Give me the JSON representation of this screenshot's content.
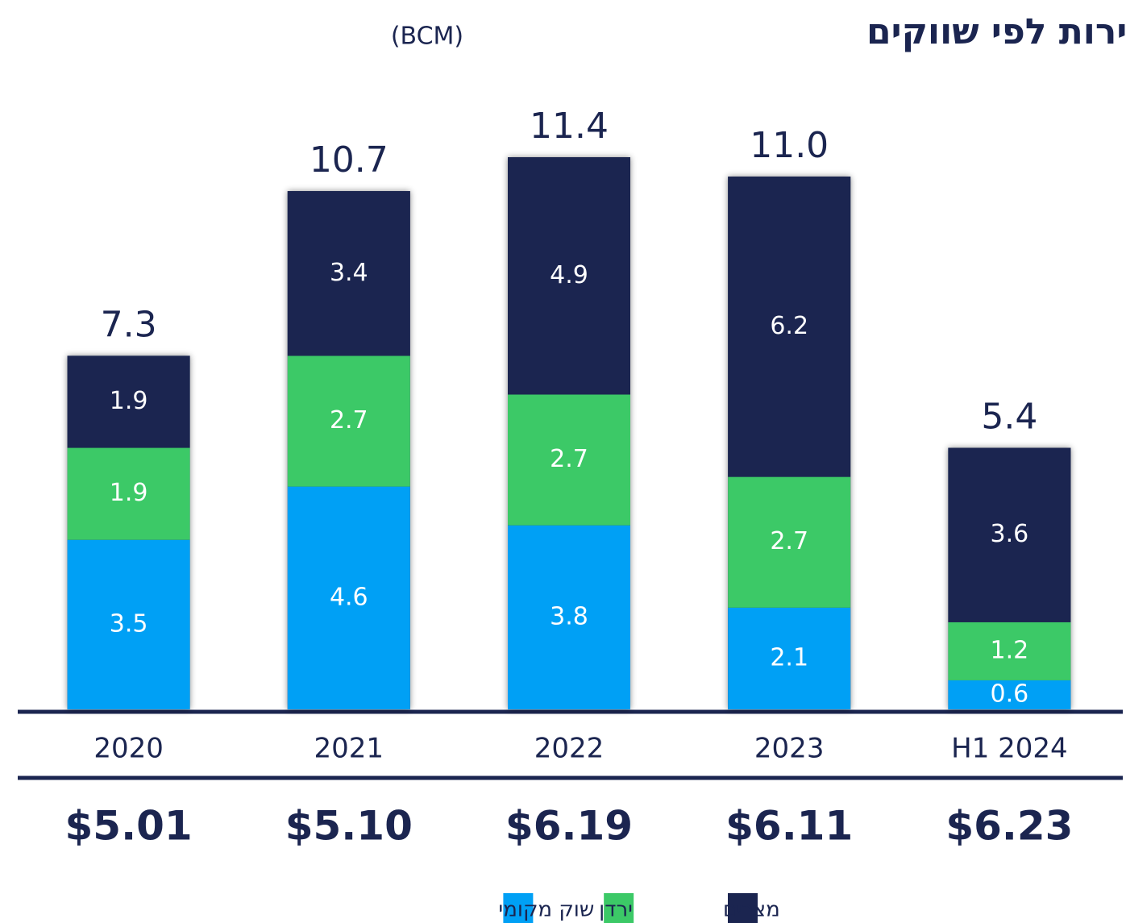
{
  "chart_data": {
    "type": "stacked_bar",
    "title": "מכירות לפי שווקים",
    "title_unit": "(BCM)",
    "categories": [
      "2020",
      "2021",
      "2022",
      "2023",
      "H1 2024"
    ],
    "series": [
      {
        "name": "שוק מקומי",
        "color": "#00a0f5",
        "values": [
          3.5,
          4.6,
          3.8,
          2.1,
          0.6
        ]
      },
      {
        "name": "ירדן",
        "color": "#3cc967",
        "values": [
          1.9,
          2.7,
          2.7,
          2.7,
          1.2
        ]
      },
      {
        "name": "מצרים",
        "color": "#1b2550",
        "values": [
          1.9,
          3.4,
          4.9,
          6.2,
          3.6
        ]
      }
    ],
    "totals": {
      "values": [
        7.3,
        10.7,
        11.4,
        11.0,
        5.4
      ],
      "value_labels": [
        "7.3",
        "10.7",
        "11.4",
        "11.0",
        "5.4"
      ]
    },
    "prices": [
      "$5.01",
      "$5.10",
      "$6.19",
      "$6.11",
      "$6.23"
    ],
    "ylim": [
      0,
      12
    ]
  }
}
